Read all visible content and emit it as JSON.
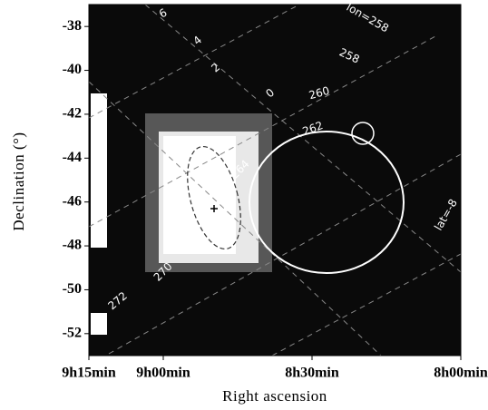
{
  "chart_data": {
    "type": "sky-image",
    "x_label": "Right ascension",
    "y_label": "Declination (°)",
    "xlim": [
      9.25,
      8.0
    ],
    "xticks": [
      {
        "value": 9.25,
        "label": "9h15min"
      },
      {
        "value": 9.0,
        "label": "9h00min"
      },
      {
        "value": 8.5,
        "label": "8h30min"
      },
      {
        "value": 8.0,
        "label": "8h00min"
      }
    ],
    "ylim": [
      -53,
      -37
    ],
    "yticks": [
      -38,
      -40,
      -42,
      -44,
      -46,
      -48,
      -50,
      -52
    ],
    "annotations": [
      "lon=258",
      "258",
      "260",
      "262",
      "264",
      "270",
      "272",
      "6",
      "4",
      "2",
      "0",
      "lat=-8"
    ]
  }
}
